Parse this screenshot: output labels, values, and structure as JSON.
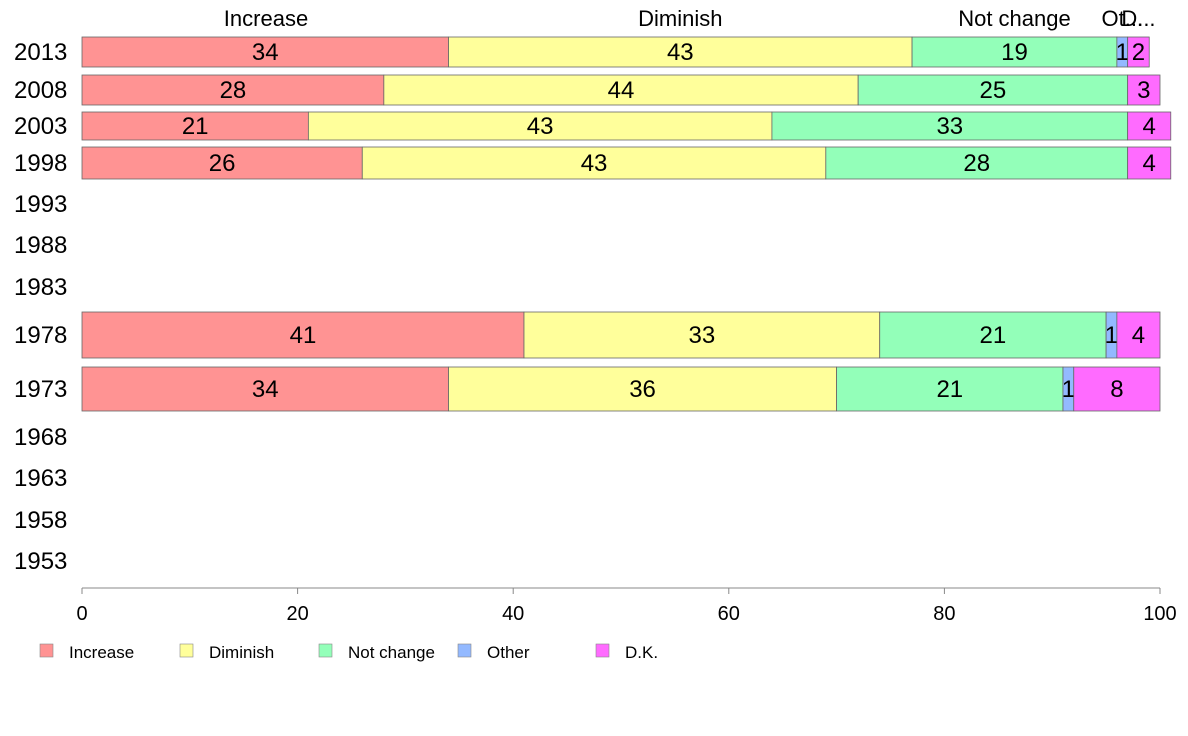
{
  "chart_data": {
    "type": "bar",
    "orientation": "horizontal",
    "stacked": true,
    "categories": [
      "2013",
      "2008",
      "2003",
      "1998",
      "1993",
      "1988",
      "1983",
      "1978",
      "1973",
      "1968",
      "1963",
      "1958",
      "1953"
    ],
    "series": [
      {
        "name": "Increase",
        "color": "#ff9393",
        "values": [
          34,
          28,
          21,
          26,
          null,
          null,
          null,
          41,
          34,
          null,
          null,
          null,
          null
        ]
      },
      {
        "name": "Diminish",
        "color": "#ffff9b",
        "values": [
          43,
          44,
          43,
          43,
          null,
          null,
          null,
          33,
          36,
          null,
          null,
          null,
          null
        ]
      },
      {
        "name": "Not change",
        "color": "#93ffb9",
        "values": [
          19,
          25,
          33,
          28,
          null,
          null,
          null,
          21,
          21,
          null,
          null,
          null,
          null
        ]
      },
      {
        "name": "Other",
        "color": "#93b9ff",
        "values": [
          1,
          0,
          0,
          0,
          null,
          null,
          null,
          1,
          1,
          null,
          null,
          null,
          null
        ]
      },
      {
        "name": "D.K.",
        "color": "#ff6bff",
        "values": [
          2,
          3,
          4,
          4,
          null,
          null,
          null,
          4,
          8,
          null,
          null,
          null,
          null
        ]
      }
    ],
    "segment_labels": [
      [
        "34",
        "43",
        "19",
        "1",
        "2"
      ],
      [
        "28",
        "44",
        "25",
        "",
        "3"
      ],
      [
        "21",
        "43",
        "33",
        "",
        "4"
      ],
      [
        "26",
        "43",
        "28",
        "",
        "4"
      ],
      null,
      null,
      null,
      [
        "41",
        "33",
        "21",
        "1",
        "4"
      ],
      [
        "34",
        "36",
        "21",
        "1",
        "8"
      ],
      null,
      null,
      null,
      null
    ],
    "top_labels": [
      "Increase",
      "Diminish",
      "Not change",
      "Ot...",
      "D..."
    ],
    "x_ticks": [
      "0",
      "20",
      "40",
      "60",
      "80",
      "100"
    ],
    "xlim": [
      0,
      100
    ],
    "legend": {
      "placement": "bottom",
      "entries": [
        "Increase",
        "Diminish",
        "Not change",
        "Other",
        "D.K."
      ]
    },
    "grid": false,
    "title": "",
    "xlabel": "",
    "ylabel": ""
  }
}
